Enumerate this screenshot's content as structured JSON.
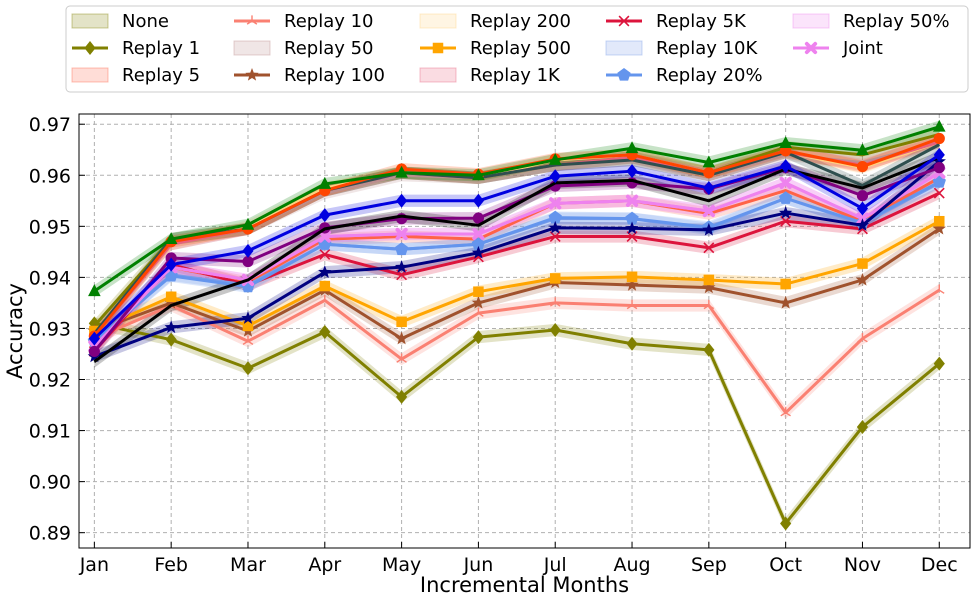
{
  "chart_data": {
    "type": "line",
    "title": "",
    "xlabel": "Incremental Months",
    "ylabel": "Accuracy",
    "categories": [
      "Jan",
      "Feb",
      "Mar",
      "Apr",
      "May",
      "Jun",
      "Jul",
      "Aug",
      "Sep",
      "Oct",
      "Nov",
      "Dec"
    ],
    "ylim": [
      0.887,
      0.972
    ],
    "yticks": [
      "0.89",
      "0.90",
      "0.91",
      "0.92",
      "0.93",
      "0.94",
      "0.95",
      "0.96",
      "0.97"
    ],
    "grid": true,
    "legend_position": "top",
    "series": [
      {
        "name": "None",
        "color": "#808000",
        "marker": "none",
        "legend": "band",
        "values": [
          0.9305,
          0.9475,
          0.9495,
          0.957,
          0.9605,
          0.9595,
          0.962,
          0.9635,
          0.9605,
          0.9655,
          0.964,
          0.968
        ]
      },
      {
        "name": "Replay 1",
        "color": "#808000",
        "marker": "diamond",
        "legend": "line",
        "values": [
          0.931,
          0.9278,
          0.9222,
          0.9293,
          0.9166,
          0.9283,
          0.9297,
          0.927,
          0.9258,
          0.8918,
          0.9107,
          0.9231
        ]
      },
      {
        "name": "Replay 5",
        "color": "#ff6347",
        "marker": "none",
        "legend": "band",
        "values": [
          0.9265,
          0.942,
          0.939,
          0.9475,
          0.948,
          0.9475,
          0.9545,
          0.955,
          0.9525,
          0.957,
          0.951,
          0.9595
        ]
      },
      {
        "name": "Replay 10",
        "color": "#fa8072",
        "marker": "tri",
        "legend": "line",
        "values": [
          0.928,
          0.9345,
          0.9275,
          0.9355,
          0.924,
          0.933,
          0.935,
          0.9345,
          0.9345,
          0.9135,
          0.928,
          0.9375
        ]
      },
      {
        "name": "Replay 50",
        "color": "#bc8f8f",
        "marker": "none",
        "legend": "band",
        "values": [
          0.9285,
          0.9465,
          0.9495,
          0.9565,
          0.96,
          0.9595,
          0.962,
          0.963,
          0.96,
          0.964,
          0.9625,
          0.9665
        ]
      },
      {
        "name": "Replay 100",
        "color": "#a0522d",
        "marker": "star",
        "legend": "line",
        "values": [
          0.9295,
          0.935,
          0.9295,
          0.9375,
          0.928,
          0.935,
          0.939,
          0.9385,
          0.938,
          0.935,
          0.9395,
          0.9495
        ]
      },
      {
        "name": "Replay 200",
        "color": "#ffd27f",
        "marker": "none",
        "legend": "band",
        "values": [
          0.929,
          0.9465,
          0.95,
          0.9575,
          0.9605,
          0.9595,
          0.963,
          0.964,
          0.9605,
          0.9645,
          0.9615,
          0.9665
        ]
      },
      {
        "name": "Replay 500",
        "color": "#ffa500",
        "marker": "square",
        "legend": "line",
        "values": [
          0.9295,
          0.9362,
          0.9305,
          0.9383,
          0.9313,
          0.9372,
          0.9398,
          0.9401,
          0.9395,
          0.9387,
          0.9427,
          0.951
        ]
      },
      {
        "name": "Replay 1K",
        "color": "#e8607c",
        "marker": "none",
        "legend": "band",
        "values": [
          0.9285,
          0.9465,
          0.9495,
          0.957,
          0.9605,
          0.9595,
          0.962,
          0.9635,
          0.96,
          0.9645,
          0.962,
          0.9665
        ]
      },
      {
        "name": "Replay 5K",
        "color": "#dc143c",
        "marker": "x",
        "legend": "line",
        "values": [
          0.9255,
          0.9425,
          0.9385,
          0.9445,
          0.9405,
          0.944,
          0.948,
          0.948,
          0.9458,
          0.951,
          0.9495,
          0.9565
        ]
      },
      {
        "name": "Replay 10K",
        "color": "#7b9ce8",
        "marker": "none",
        "legend": "band",
        "values": [
          0.9275,
          0.9405,
          0.9385,
          0.9465,
          0.9455,
          0.9465,
          0.9515,
          0.9515,
          0.9495,
          0.9555,
          0.9505,
          0.9585
        ]
      },
      {
        "name": "Replay 20%",
        "color": "#6495ed",
        "marker": "pentagon",
        "legend": "line",
        "values": [
          0.9275,
          0.9403,
          0.9382,
          0.9465,
          0.9455,
          0.9465,
          0.9517,
          0.9515,
          0.9498,
          0.9555,
          0.9507,
          0.9587
        ]
      },
      {
        "name": "Replay 50%",
        "color": "#ee82ee",
        "marker": "none",
        "legend": "band",
        "values": [
          0.9265,
          0.942,
          0.9395,
          0.948,
          0.9485,
          0.9485,
          0.9545,
          0.955,
          0.953,
          0.9585,
          0.9515,
          0.9605
        ]
      },
      {
        "name": "Joint",
        "color": "#ee82ee",
        "marker": "plusx",
        "legend": "line",
        "values": [
          0.9265,
          0.942,
          0.9395,
          0.948,
          0.9485,
          0.9485,
          0.9545,
          0.955,
          0.953,
          0.9585,
          0.9515,
          0.9605
        ]
      },
      {
        "name": "",
        "color": "#2f4f4f",
        "marker": "none",
        "legend": "none",
        "values": [
          0.929,
          0.9475,
          0.9495,
          0.957,
          0.9605,
          0.9595,
          0.962,
          0.963,
          0.96,
          0.9645,
          0.958,
          0.966
        ]
      },
      {
        "name": "",
        "color": "#ff4500",
        "marker": "circle",
        "legend": "none",
        "values": [
          0.9285,
          0.947,
          0.9495,
          0.957,
          0.9612,
          0.9602,
          0.9632,
          0.964,
          0.9605,
          0.9648,
          0.9617,
          0.9672
        ]
      },
      {
        "name": "",
        "color": "#000080",
        "marker": "star",
        "legend": "none",
        "values": [
          0.9245,
          0.9302,
          0.932,
          0.941,
          0.942,
          0.9448,
          0.9497,
          0.9496,
          0.9493,
          0.9526,
          0.9502,
          0.9627
        ]
      },
      {
        "name": "",
        "color": "#800080",
        "marker": "circle",
        "legend": "none",
        "values": [
          0.9255,
          0.9438,
          0.9431,
          0.9497,
          0.9515,
          0.9516,
          0.9579,
          0.9585,
          0.9573,
          0.9615,
          0.956,
          0.9615
        ]
      },
      {
        "name": "",
        "color": "#000000",
        "marker": "none",
        "legend": "none",
        "values": [
          0.9235,
          0.9345,
          0.9395,
          0.9495,
          0.952,
          0.9502,
          0.9585,
          0.959,
          0.955,
          0.9612,
          0.9575,
          0.9635
        ]
      },
      {
        "name": "",
        "color": "#0000e0",
        "marker": "diamond",
        "legend": "none",
        "values": [
          0.928,
          0.9425,
          0.9452,
          0.9522,
          0.955,
          0.955,
          0.9598,
          0.9608,
          0.9575,
          0.9618,
          0.9535,
          0.964
        ]
      },
      {
        "name": "",
        "color": "#008000",
        "marker": "triangle",
        "legend": "none",
        "values": [
          0.9373,
          0.9475,
          0.9503,
          0.9583,
          0.9605,
          0.96,
          0.963,
          0.9653,
          0.9625,
          0.9663,
          0.9649,
          0.9695
        ]
      }
    ]
  }
}
